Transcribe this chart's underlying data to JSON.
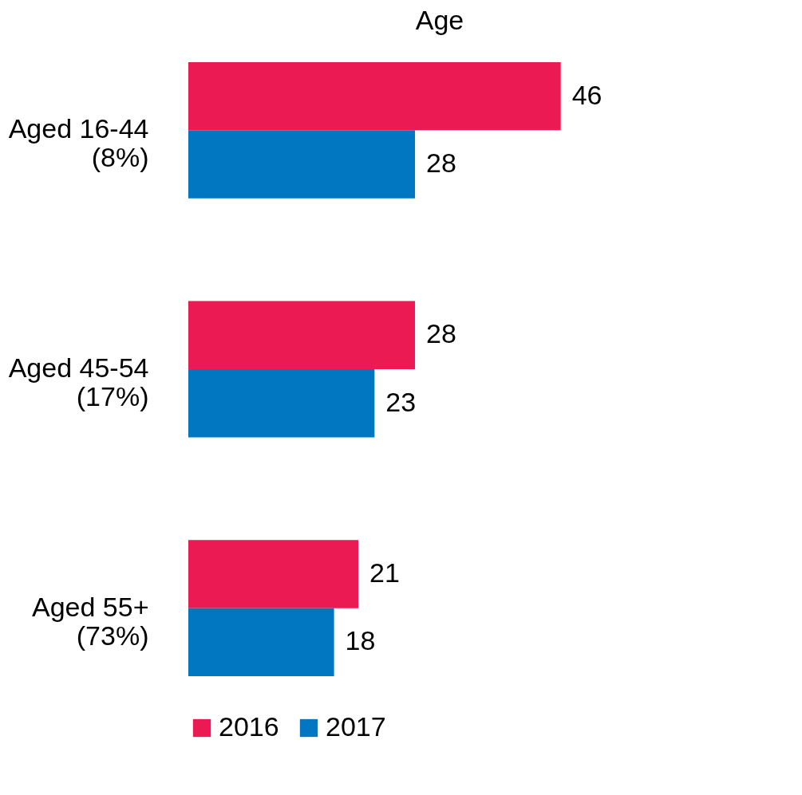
{
  "chart_data": {
    "type": "bar",
    "orientation": "horizontal",
    "title": "Age",
    "categories": [
      "Aged 16-44\n(8%)",
      "Aged 45-54\n(17%)",
      "Aged 55+\n(73%)"
    ],
    "series": [
      {
        "name": "2016",
        "color": "#ec1a52",
        "values": [
          46,
          28,
          21
        ]
      },
      {
        "name": "2017",
        "color": "#0077c0",
        "values": [
          28,
          23,
          18
        ]
      }
    ],
    "data_labels": true,
    "legend": "bottom",
    "tick_labels": "y"
  }
}
